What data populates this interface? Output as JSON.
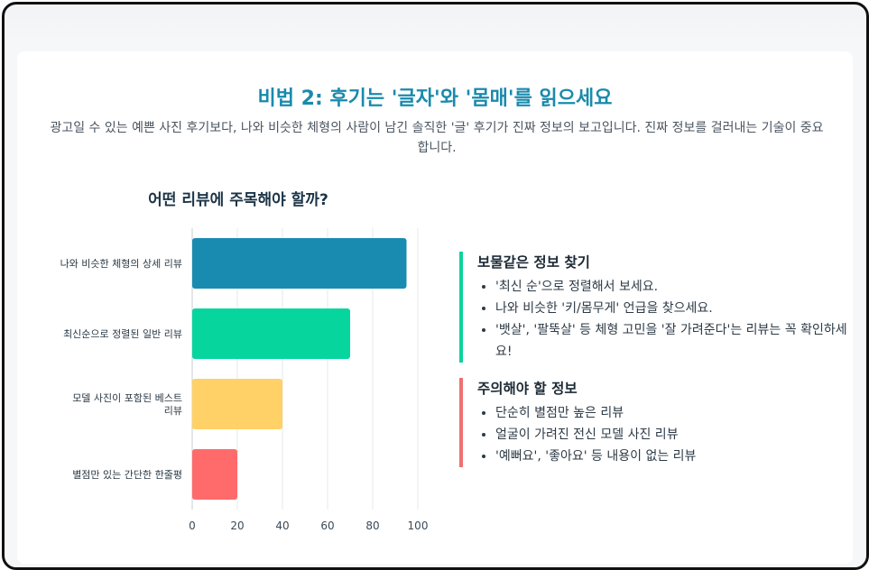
{
  "header": {
    "title": "비법 2: 후기는 '글자'와 '몸매'를 읽으세요",
    "subtitle": "광고일 수 있는 예쁜 사진 후기보다, 나와 비슷한 체형의 사람이 남긴 솔직한 '글' 후기가 진짜 정보의 보고입니다. 진짜 정보를 걸러내는 기술이 중요합니다."
  },
  "chart_data": {
    "type": "bar",
    "orientation": "horizontal",
    "title": "어떤 리뷰에 주목해야 할까?",
    "categories": [
      "나와 비슷한 체형의 상세 리뷰",
      "최신순으로 정렬된 일반 리뷰",
      "모델 사진이 포함된 베스트 리뷰",
      "별점만 있는 간단한 한줄평"
    ],
    "values": [
      95,
      70,
      40,
      20
    ],
    "colors": [
      "#1a8bb0",
      "#06d69e",
      "#ffd166",
      "#ff6b6b"
    ],
    "xlim": [
      0,
      100
    ],
    "xticks": [
      "0",
      "20",
      "40",
      "60",
      "80",
      "100"
    ],
    "grid": true,
    "legend": "none"
  },
  "tips": {
    "good": {
      "heading": "보물같은 정보 찾기",
      "items": [
        "'최신 순'으로 정렬해서 보세요.",
        "나와 비슷한 '키/몸무게' 언급을 찾으세요.",
        "'뱃살', '팔뚝살' 등 체형 고민을 '잘 가려준다'는 리뷰는 꼭 확인하세요!"
      ],
      "accent": "#0fd29b"
    },
    "warn": {
      "heading": "주의해야 할 정보",
      "items": [
        "단순히 별점만 높은 리뷰",
        "얼굴이 가려진 전신 모델 사진 리뷰",
        "'예뻐요', '좋아요' 등 내용이 없는 리뷰"
      ],
      "accent": "#ef7070"
    }
  }
}
